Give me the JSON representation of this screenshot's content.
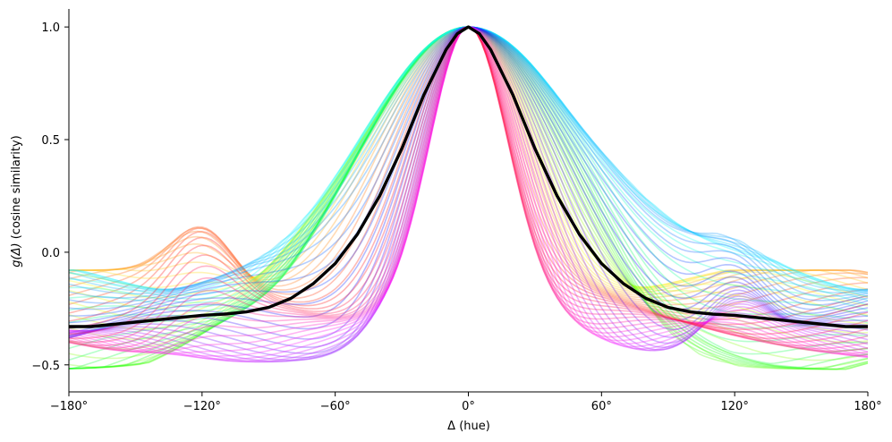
{
  "chart_data": {
    "type": "line",
    "title": "",
    "xlabel": "Δ (hue)",
    "ylabel_prefix": "g(Δ)",
    "ylabel_suffix": " (cosine similarity)",
    "xlim": [
      -180,
      180
    ],
    "ylim": [
      -0.62,
      1.08
    ],
    "xticks": [
      -180,
      -120,
      -60,
      0,
      60,
      120,
      180
    ],
    "xtick_labels": [
      "−180°",
      "−120°",
      "−60°",
      "0°",
      "60°",
      "120°",
      "180°"
    ],
    "yticks": [
      -0.5,
      0.0,
      0.5,
      1.0
    ],
    "ytick_labels": [
      "−0.5",
      "0.0",
      "0.5",
      "1.0"
    ],
    "grid": false,
    "background_curves": {
      "count": 72,
      "description": "one translucent curve per reference hue, coloured by that hue",
      "peak": 1.0,
      "width_range_deg": [
        18,
        52
      ],
      "baseline_range": [
        -0.52,
        -0.08
      ]
    },
    "mean_series": {
      "name": "mean",
      "color": "#000000",
      "x": [
        -180,
        -170,
        -160,
        -150,
        -140,
        -130,
        -120,
        -110,
        -100,
        -90,
        -80,
        -70,
        -60,
        -50,
        -40,
        -30,
        -20,
        -10,
        -5,
        0,
        5,
        10,
        20,
        30,
        40,
        50,
        60,
        70,
        80,
        90,
        100,
        110,
        120,
        130,
        140,
        150,
        160,
        170,
        180
      ],
      "y": [
        -0.33,
        -0.33,
        -0.32,
        -0.31,
        -0.3,
        -0.29,
        -0.28,
        -0.275,
        -0.265,
        -0.245,
        -0.205,
        -0.14,
        -0.05,
        0.08,
        0.25,
        0.46,
        0.7,
        0.9,
        0.97,
        1.0,
        0.97,
        0.9,
        0.7,
        0.46,
        0.25,
        0.08,
        -0.05,
        -0.14,
        -0.205,
        -0.245,
        -0.265,
        -0.275,
        -0.28,
        -0.29,
        -0.3,
        -0.31,
        -0.32,
        -0.33,
        -0.33
      ]
    }
  }
}
